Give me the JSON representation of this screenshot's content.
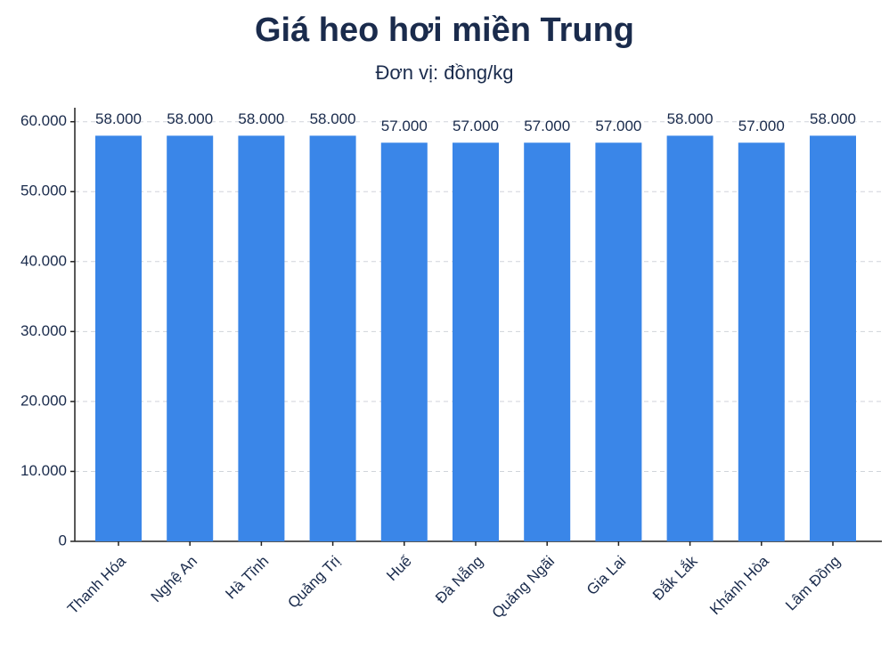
{
  "chart_data": {
    "type": "bar",
    "title": "Giá heo hơi miền Trung",
    "subtitle": "Đơn vị: đồng/kg",
    "categories": [
      "Thanh Hóa",
      "Nghệ An",
      "Hà Tĩnh",
      "Quảng Trị",
      "Huế",
      "Đà Nẵng",
      "Quảng Ngãi",
      "Gia Lai",
      "Đắk Lắk",
      "Khánh Hòa",
      "Lâm Đồng"
    ],
    "values": [
      58000,
      58000,
      58000,
      58000,
      57000,
      57000,
      57000,
      57000,
      58000,
      57000,
      58000
    ],
    "value_labels": [
      "58.000",
      "58.000",
      "58.000",
      "58.000",
      "57.000",
      "57.000",
      "57.000",
      "57.000",
      "58.000",
      "57.000",
      "58.000"
    ],
    "color": "#3a86e8",
    "ylim": [
      0,
      62000
    ],
    "yticks": [
      0,
      {
        "value": 10000,
        "label": "10.000"
      },
      {
        "value": 20000,
        "label": "20.000"
      },
      {
        "value": 30000,
        "label": "30.000"
      },
      {
        "value": 40000,
        "label": "40.000"
      },
      {
        "value": 50000,
        "label": "50.000"
      },
      {
        "value": 60000,
        "label": "60.000"
      }
    ],
    "grid": true
  }
}
